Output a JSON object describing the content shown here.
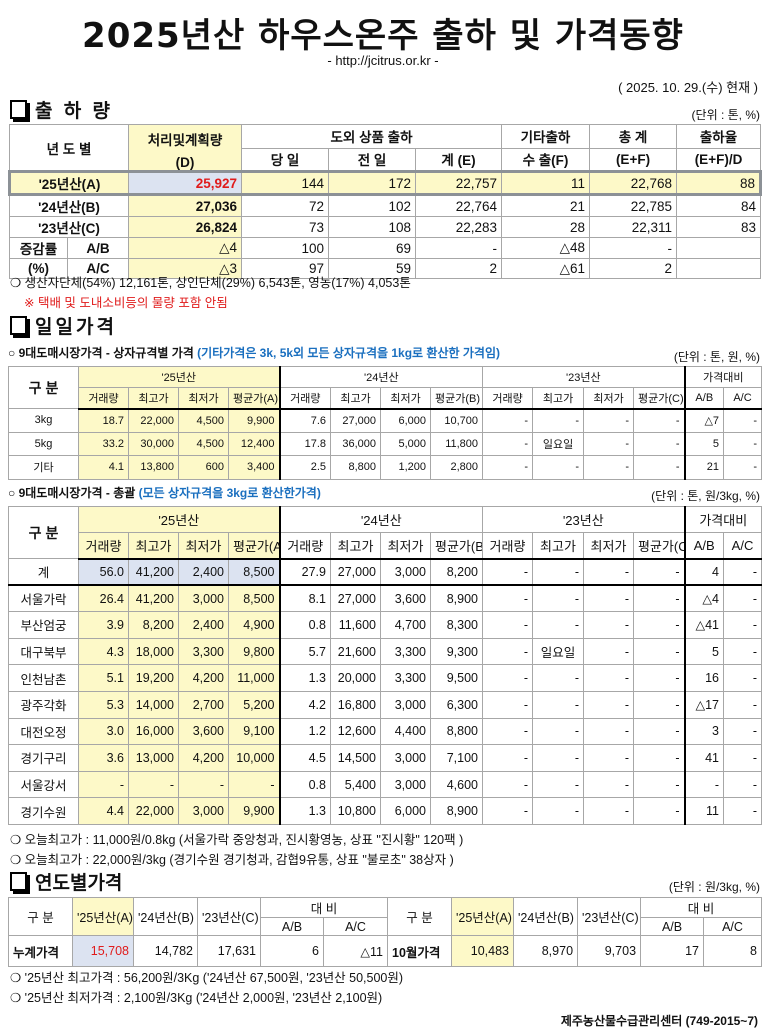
{
  "header": {
    "title": "2025년산 하우스온주 출하 및 가격동향",
    "url": "- http://jcitrus.or.kr -",
    "date": "( 2025. 10. 29.(수) 현재 )"
  },
  "shipment": {
    "section_title": "출 하 량",
    "unit": "(단위 : 톤, %)",
    "headers": {
      "year": "년 도 별",
      "plan": "처리및계획량",
      "plan_sub": "(D)",
      "outside": "도외 상품 출하",
      "today": "당 일",
      "yesterday": "전 일",
      "total_e": "계 (E)",
      "other": "기타출하",
      "export_f": "수 출(F)",
      "total": "총   계",
      "total_sub": "(E+F)",
      "rate": "출하율",
      "rate_sub": "(E+F)/D"
    },
    "rows": [
      {
        "label": "'25년산(A)",
        "d": "25,927",
        "today": "144",
        "yesterday": "172",
        "e": "22,757",
        "f": "11",
        "ef": "22,768",
        "rate": "88"
      },
      {
        "label": "'24년산(B)",
        "d": "27,036",
        "today": "72",
        "yesterday": "102",
        "e": "22,764",
        "f": "21",
        "ef": "22,785",
        "rate": "84"
      },
      {
        "label": "'23년산(C)",
        "d": "26,824",
        "today": "73",
        "yesterday": "108",
        "e": "22,283",
        "f": "28",
        "ef": "22,311",
        "rate": "83"
      }
    ],
    "change_label": "증감률",
    "change_unit": "(%)",
    "change_rows": [
      {
        "label": "A/B",
        "d": "△4",
        "today": "100",
        "yesterday": "69",
        "e": "-",
        "f": "△48",
        "ef": "-",
        "rate": ""
      },
      {
        "label": "A/C",
        "d": "△3",
        "today": "97",
        "yesterday": "59",
        "e": "2",
        "f": "△61",
        "ef": "2",
        "rate": ""
      }
    ],
    "note": "❍ 생산자단체(54%) 12,161톤, 상인단체(29%) 6,543톤, 영농(17%) 4,053톤",
    "warning": "※ 택배 및 도내소비등의 물량 포함 안됨"
  },
  "daily": {
    "section_title": "일일가격",
    "by_size": {
      "subtitle": "○ 9대도매시장가격 - 상자규격별 가격 ",
      "subtitle_note": "(기타가격은 3k, 5k외 모든 상자규격을 1kg로 환산한 가격임)",
      "unit": "(단위 : 톤, 원, %)",
      "headers": {
        "category": "구  분",
        "y25": "'25년산",
        "y24": "'24년산",
        "y23": "'23년산",
        "compare": "가격대비",
        "cols25": [
          "거래량",
          "최고가",
          "최저가",
          "평균가(A)"
        ],
        "cols24": [
          "거래량",
          "최고가",
          "최저가",
          "평균가(B)"
        ],
        "cols23": [
          "거래량",
          "최고가",
          "최저가",
          "평균가(C)"
        ],
        "ab": "A/B",
        "ac": "A/C"
      },
      "rows": [
        {
          "label": "3kg",
          "y25": [
            "18.7",
            "22,000",
            "4,500",
            "9,900"
          ],
          "y24": [
            "7.6",
            "27,000",
            "6,000",
            "10,700"
          ],
          "y23": [
            "-",
            "-",
            "-",
            "-"
          ],
          "ab": "△7",
          "ac": "-"
        },
        {
          "label": "5kg",
          "y25": [
            "33.2",
            "30,000",
            "4,500",
            "12,400"
          ],
          "y24": [
            "17.8",
            "36,000",
            "5,000",
            "11,800"
          ],
          "y23": [
            "-",
            "일요일",
            "-",
            "-"
          ],
          "ab": "5",
          "ac": "-"
        },
        {
          "label": "기타",
          "y25": [
            "4.1",
            "13,800",
            "600",
            "3,400"
          ],
          "y24": [
            "2.5",
            "8,800",
            "1,200",
            "2,800"
          ],
          "y23": [
            "-",
            "-",
            "-",
            "-"
          ],
          "ab": "21",
          "ac": "-"
        }
      ]
    },
    "summary": {
      "subtitle": "○ 9대도매시장가격 - 총괄 ",
      "subtitle_note": "(모든 상자규격을 3kg로 환산한가격)",
      "unit": "(단위 : 톤, 원/3kg, %)",
      "headers": {
        "category": "구   분",
        "y25": "'25년산",
        "y24": "'24년산",
        "y23": "'23년산",
        "compare": "가격대비",
        "cols25": [
          "거래량",
          "최고가",
          "최저가",
          "평균가(A)"
        ],
        "cols24": [
          "거래량",
          "최고가",
          "최저가",
          "평균가(B)"
        ],
        "cols23": [
          "거래량",
          "최고가",
          "최저가",
          "평균가(C)"
        ],
        "ab": "A/B",
        "ac": "A/C"
      },
      "rows": [
        {
          "label": "계",
          "y25": [
            "56.0",
            "41,200",
            "2,400",
            "8,500"
          ],
          "y24": [
            "27.9",
            "27,000",
            "3,000",
            "8,200"
          ],
          "y23": [
            "-",
            "-",
            "-",
            "-"
          ],
          "ab": "4",
          "ac": "-"
        },
        {
          "label": "서울가락",
          "y25": [
            "26.4",
            "41,200",
            "3,000",
            "8,500"
          ],
          "y24": [
            "8.1",
            "27,000",
            "3,600",
            "8,900"
          ],
          "y23": [
            "-",
            "-",
            "-",
            "-"
          ],
          "ab": "△4",
          "ac": "-"
        },
        {
          "label": "부산엄궁",
          "y25": [
            "3.9",
            "8,200",
            "2,400",
            "4,900"
          ],
          "y24": [
            "0.8",
            "11,600",
            "4,700",
            "8,300"
          ],
          "y23": [
            "-",
            "-",
            "-",
            "-"
          ],
          "ab": "△41",
          "ac": "-"
        },
        {
          "label": "대구북부",
          "y25": [
            "4.3",
            "18,000",
            "3,300",
            "9,800"
          ],
          "y24": [
            "5.7",
            "21,600",
            "3,300",
            "9,300"
          ],
          "y23": [
            "-",
            "일요일",
            "-",
            "-"
          ],
          "ab": "5",
          "ac": "-"
        },
        {
          "label": "인천남촌",
          "y25": [
            "5.1",
            "19,200",
            "4,200",
            "11,000"
          ],
          "y24": [
            "1.3",
            "20,000",
            "3,300",
            "9,500"
          ],
          "y23": [
            "-",
            "-",
            "-",
            "-"
          ],
          "ab": "16",
          "ac": "-"
        },
        {
          "label": "광주각화",
          "y25": [
            "5.3",
            "14,000",
            "2,700",
            "5,200"
          ],
          "y24": [
            "4.2",
            "16,800",
            "3,000",
            "6,300"
          ],
          "y23": [
            "-",
            "-",
            "-",
            "-"
          ],
          "ab": "△17",
          "ac": "-"
        },
        {
          "label": "대전오정",
          "y25": [
            "3.0",
            "16,000",
            "3,600",
            "9,100"
          ],
          "y24": [
            "1.2",
            "12,600",
            "4,400",
            "8,800"
          ],
          "y23": [
            "-",
            "-",
            "-",
            "-"
          ],
          "ab": "3",
          "ac": "-"
        },
        {
          "label": "경기구리",
          "y25": [
            "3.6",
            "13,000",
            "4,200",
            "10,000"
          ],
          "y24": [
            "4.5",
            "14,500",
            "3,000",
            "7,100"
          ],
          "y23": [
            "-",
            "-",
            "-",
            "-"
          ],
          "ab": "41",
          "ac": "-"
        },
        {
          "label": "서울강서",
          "y25": [
            "-",
            "-",
            "-",
            "-"
          ],
          "y24": [
            "0.8",
            "5,400",
            "3,000",
            "4,600"
          ],
          "y23": [
            "-",
            "-",
            "-",
            "-"
          ],
          "ab": "-",
          "ac": "-"
        },
        {
          "label": "경기수원",
          "y25": [
            "4.4",
            "22,000",
            "3,000",
            "9,900"
          ],
          "y24": [
            "1.3",
            "10,800",
            "6,000",
            "8,900"
          ],
          "y23": [
            "-",
            "-",
            "-",
            "-"
          ],
          "ab": "11",
          "ac": "-"
        }
      ],
      "notes": [
        "❍ 오늘최고가 : 11,000원/0.8kg (서울가락 중앙청과, 진시황영농,  상표 \"진시황\"  120팩 )",
        "❍ 오늘최고가 : 22,000원/3kg (경기수원 경기청과, 감협9유통,  상표 \"불로초\" 38상자 )"
      ]
    }
  },
  "yearly": {
    "section_title": "연도별가격",
    "unit": "(단위 : 원/3kg, %)",
    "headers": {
      "category": "구     분",
      "a": "'25년산(A)",
      "b": "'24년산(B)",
      "c": "'23년산(C)",
      "compare": "대     비",
      "ab": "A/B",
      "ac": "A/C"
    },
    "cumulative": {
      "label": "누계가격",
      "a": "15,708",
      "b": "14,782",
      "c": "17,631",
      "ab": "6",
      "ac": "△11"
    },
    "monthly": {
      "label": "10월가격",
      "a": "10,483",
      "b": "8,970",
      "c": "9,703",
      "ab": "17",
      "ac": "8"
    },
    "notes": [
      "❍  '25년산 최고가격 :  56,200원/3Kg ('24년산 67,500원, '23년산 50,500원)",
      "❍  '25년산 최저가격 :  2,100원/3Kg ('24년산 2,000원, '23년산 2,100원)"
    ]
  },
  "footer": "제주농산물수급관리센터 (749-2015~7)",
  "colors": {
    "highlight_yellow": "#fdf9c8",
    "highlight_blue": "#dce3f1",
    "red": "#e01b1b",
    "note_blue": "#1a6fbf"
  }
}
